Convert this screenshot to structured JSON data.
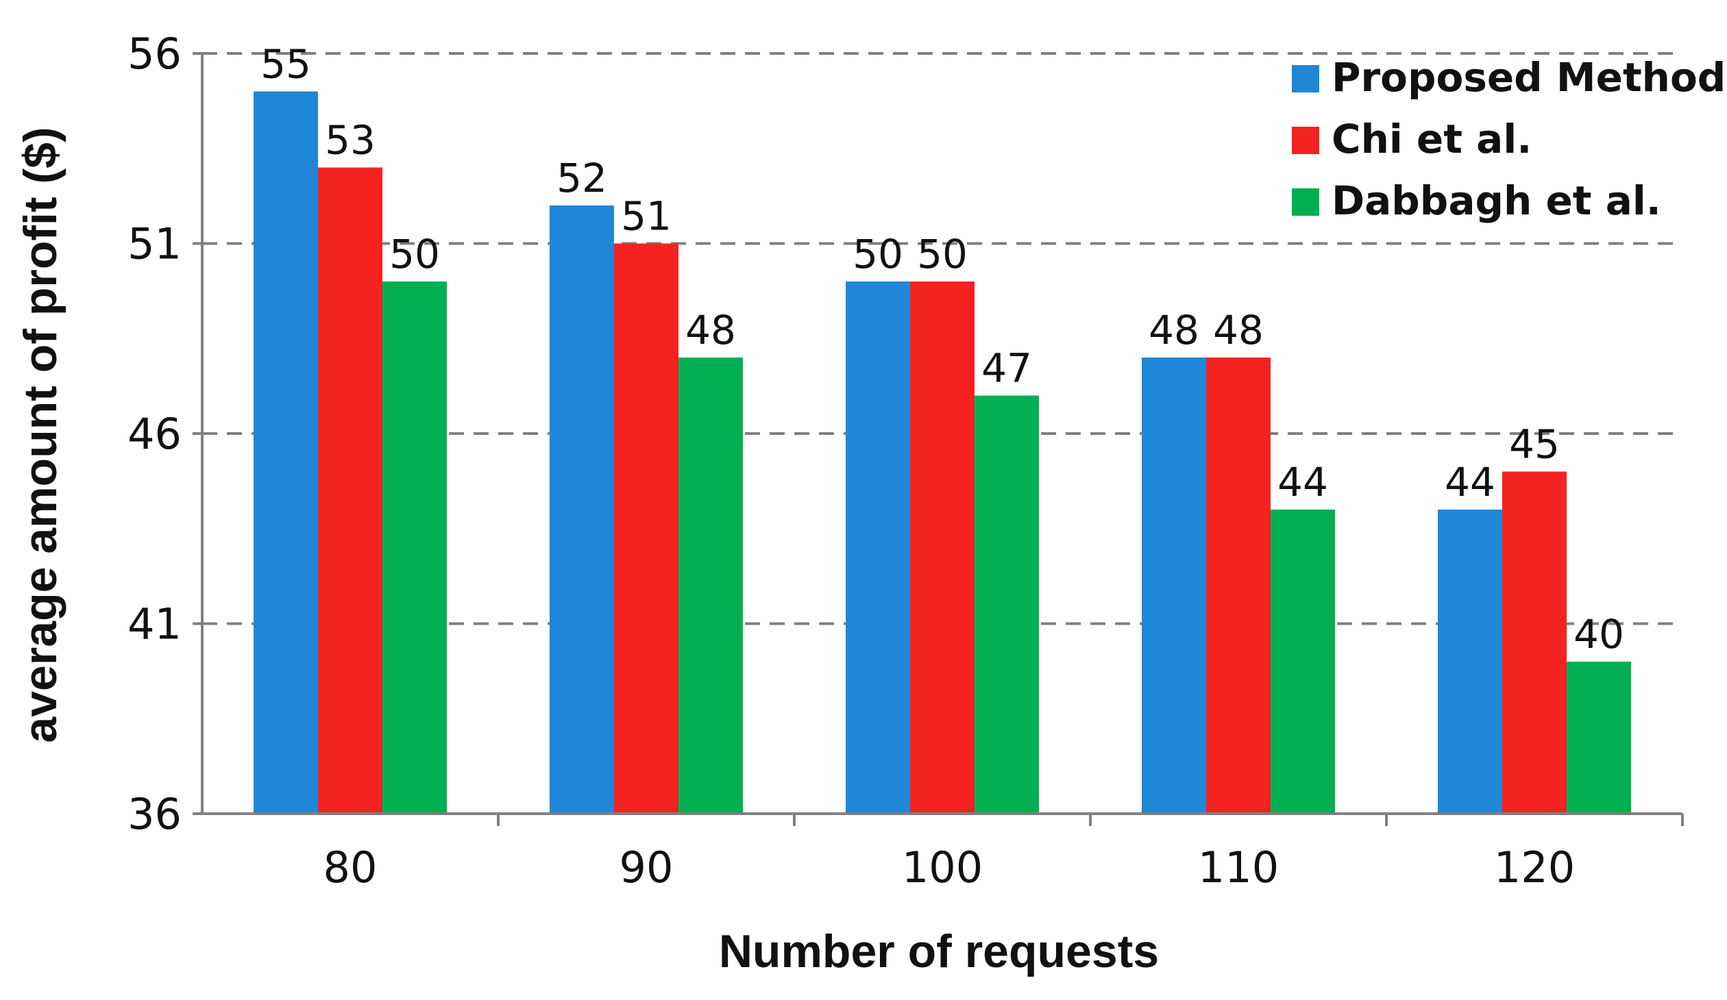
{
  "chart_data": {
    "type": "bar",
    "title": "",
    "xlabel": "Number of requests",
    "ylabel": "average amount of profit ($)",
    "categories": [
      "80",
      "90",
      "100",
      "110",
      "120"
    ],
    "series": [
      {
        "name": "Proposed Method",
        "color": "#1f87d6",
        "values": [
          55,
          52,
          50,
          48,
          44
        ]
      },
      {
        "name": "Chi et al.",
        "color": "#f52222",
        "values": [
          53,
          51,
          50,
          48,
          45
        ]
      },
      {
        "name": "Dabbagh et al.",
        "color": "#00b050",
        "values": [
          50,
          48,
          47,
          44,
          40
        ]
      }
    ],
    "ylim": [
      36,
      56
    ],
    "yticks": [
      36,
      41,
      46,
      51,
      56
    ],
    "grid": true,
    "legend_position": "top-right"
  }
}
